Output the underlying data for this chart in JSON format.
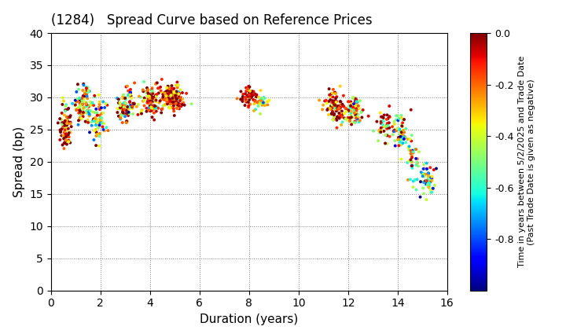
{
  "title": "(1284)   Spread Curve based on Reference Prices",
  "xlabel": "Duration (years)",
  "ylabel": "Spread (bp)",
  "colorbar_label": "Time in years between 5/2/2025 and Trade Date\n(Past Trade Date is given as negative)",
  "xlim": [
    0,
    16
  ],
  "ylim": [
    0,
    40
  ],
  "xticks": [
    0,
    2,
    4,
    6,
    8,
    10,
    12,
    14,
    16
  ],
  "yticks": [
    0,
    5,
    10,
    15,
    20,
    25,
    30,
    35,
    40
  ],
  "clim": [
    -1.0,
    0.0
  ],
  "clusters": [
    {
      "dc": 0.6,
      "sc": 25.5,
      "n": 80,
      "ds": 0.12,
      "ss": 1.8,
      "tc": -0.08,
      "ts": 0.25
    },
    {
      "dc": 1.3,
      "sc": 28.8,
      "n": 100,
      "ds": 0.22,
      "ss": 1.5,
      "tc": -0.25,
      "ts": 0.3
    },
    {
      "dc": 1.9,
      "sc": 26.5,
      "n": 70,
      "ds": 0.18,
      "ss": 1.5,
      "tc": -0.4,
      "ts": 0.28
    },
    {
      "dc": 3.0,
      "sc": 28.2,
      "n": 90,
      "ds": 0.2,
      "ss": 1.4,
      "tc": -0.28,
      "ts": 0.3
    },
    {
      "dc": 4.0,
      "sc": 29.5,
      "n": 100,
      "ds": 0.22,
      "ss": 1.2,
      "tc": -0.18,
      "ts": 0.25
    },
    {
      "dc": 4.8,
      "sc": 30.2,
      "n": 80,
      "ds": 0.2,
      "ss": 1.0,
      "tc": -0.1,
      "ts": 0.2
    },
    {
      "dc": 5.1,
      "sc": 29.3,
      "n": 60,
      "ds": 0.18,
      "ss": 1.0,
      "tc": -0.15,
      "ts": 0.2
    },
    {
      "dc": 8.0,
      "sc": 30.2,
      "n": 60,
      "ds": 0.18,
      "ss": 0.8,
      "tc": -0.05,
      "ts": 0.15
    },
    {
      "dc": 8.5,
      "sc": 29.2,
      "n": 30,
      "ds": 0.12,
      "ss": 0.6,
      "tc": -0.42,
      "ts": 0.2
    },
    {
      "dc": 11.5,
      "sc": 28.6,
      "n": 90,
      "ds": 0.22,
      "ss": 1.3,
      "tc": -0.08,
      "ts": 0.18
    },
    {
      "dc": 12.2,
      "sc": 28.0,
      "n": 80,
      "ds": 0.2,
      "ss": 1.2,
      "tc": -0.3,
      "ts": 0.25
    },
    {
      "dc": 13.5,
      "sc": 25.5,
      "n": 50,
      "ds": 0.18,
      "ss": 1.2,
      "tc": -0.2,
      "ts": 0.28
    },
    {
      "dc": 14.1,
      "sc": 24.2,
      "n": 50,
      "ds": 0.15,
      "ss": 1.5,
      "tc": -0.38,
      "ts": 0.3
    },
    {
      "dc": 14.6,
      "sc": 21.0,
      "n": 40,
      "ds": 0.12,
      "ss": 1.8,
      "tc": -0.45,
      "ts": 0.28
    },
    {
      "dc": 15.2,
      "sc": 17.5,
      "n": 60,
      "ds": 0.15,
      "ss": 1.2,
      "tc": -0.55,
      "ts": 0.25
    }
  ],
  "marker_size": 8,
  "title_fontsize": 12,
  "label_fontsize": 11,
  "tick_fontsize": 10,
  "colorbar_tick_fontsize": 9,
  "colorbar_label_fontsize": 8
}
